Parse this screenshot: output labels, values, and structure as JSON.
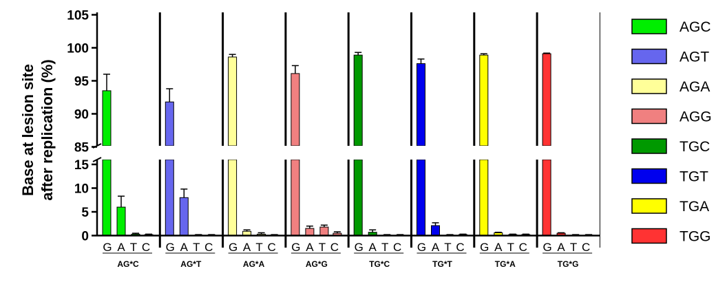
{
  "chart_data": {
    "type": "bar",
    "ylabel_line1": "Base at lesion site",
    "ylabel_line2": "after replication (%)",
    "y_axis_break": [
      15,
      85
    ],
    "ylim": [
      0,
      105
    ],
    "y_ticks_lower": [
      "0",
      "5",
      "10",
      "15"
    ],
    "y_ticks_upper": [
      "85",
      "90",
      "95",
      "100",
      "105"
    ],
    "bases": [
      "G",
      "A",
      "T",
      "C"
    ],
    "groups": [
      {
        "label": "AG*C",
        "color": "#00ee00",
        "values": [
          93.5,
          6.0,
          0.3,
          0.2
        ],
        "errors": [
          2.5,
          2.3,
          0.2,
          0.1
        ]
      },
      {
        "label": "AG*T",
        "color": "#6666ee",
        "values": [
          91.8,
          8.0,
          0.1,
          0.1
        ],
        "errors": [
          2.0,
          1.8,
          0.1,
          0.1
        ]
      },
      {
        "label": "AG*A",
        "color": "#ffff99",
        "values": [
          98.6,
          0.9,
          0.3,
          0.1
        ],
        "errors": [
          0.4,
          0.3,
          0.3,
          0.1
        ]
      },
      {
        "label": "AG*G",
        "color": "#f08080",
        "values": [
          96.1,
          1.5,
          1.8,
          0.5
        ],
        "errors": [
          1.2,
          0.5,
          0.4,
          0.3
        ]
      },
      {
        "label": "TG*C",
        "color": "#009900",
        "values": [
          98.9,
          0.7,
          0.1,
          0.1
        ],
        "errors": [
          0.4,
          0.5,
          0.1,
          0.1
        ]
      },
      {
        "label": "TG*T",
        "color": "#0000ee",
        "values": [
          97.6,
          2.1,
          0.1,
          0.2
        ],
        "errors": [
          0.7,
          0.6,
          0.1,
          0.1
        ]
      },
      {
        "label": "TG*A",
        "color": "#ffff00",
        "values": [
          98.9,
          0.6,
          0.2,
          0.2
        ],
        "errors": [
          0.2,
          0.1,
          0.1,
          0.1
        ]
      },
      {
        "label": "TG*G",
        "color": "#ff3333",
        "values": [
          99.1,
          0.5,
          0.1,
          0.1
        ],
        "errors": [
          0.1,
          0.1,
          0.1,
          0.1
        ]
      }
    ],
    "legend": [
      {
        "label": "AGC",
        "color": "#00ee00"
      },
      {
        "label": "AGT",
        "color": "#6666ee"
      },
      {
        "label": "AGA",
        "color": "#ffff99"
      },
      {
        "label": "AGG",
        "color": "#f08080"
      },
      {
        "label": "TGC",
        "color": "#009900"
      },
      {
        "label": "TGT",
        "color": "#0000ee"
      },
      {
        "label": "TGA",
        "color": "#ffff00"
      },
      {
        "label": "TGG",
        "color": "#ff3333"
      }
    ],
    "legend_position": "right"
  }
}
